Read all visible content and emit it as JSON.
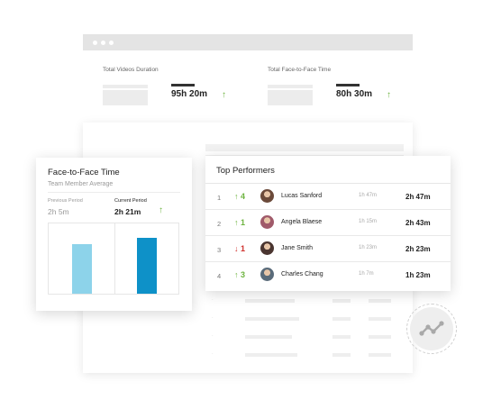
{
  "summary": {
    "total_videos_duration": {
      "label": "Total Videos Duration",
      "value": "95h 20m",
      "trend": "up"
    },
    "total_face_to_face_time": {
      "label": "Total Face-to-Face Time",
      "value": "80h 30m",
      "trend": "up"
    }
  },
  "face_to_face": {
    "title": "Face-to-Face Time",
    "subtitle": "Team Member Average",
    "previous_label": "Previous Period",
    "previous_value": "2h 5m",
    "current_label": "Current Period",
    "current_value": "2h  21m",
    "trend": "up",
    "colors": {
      "previous_bar": "#8dd3ea",
      "current_bar": "#0e91c8"
    }
  },
  "chart_data": {
    "type": "bar",
    "categories": [
      "Previous Period",
      "Current Period"
    ],
    "values": [
      125,
      141
    ],
    "ylim": [
      0,
      176
    ],
    "colors": [
      "#8dd3ea",
      "#0e91c8"
    ]
  },
  "top_performers": {
    "title": "Top Performers",
    "rows": [
      {
        "rank": "1",
        "delta": "4",
        "direction": "up",
        "name": "Lucas Sanford",
        "previous": "1h 47m",
        "current": "2h 47m",
        "avatar_color": "#6b4a3a"
      },
      {
        "rank": "2",
        "delta": "1",
        "direction": "up",
        "name": "Angela Blaese",
        "previous": "1h 15m",
        "current": "2h 43m",
        "avatar_color": "#a05a6a"
      },
      {
        "rank": "3",
        "delta": "1",
        "direction": "down",
        "name": "Jane Smith",
        "previous": "1h 23m",
        "current": "2h 23m",
        "avatar_color": "#4a3530"
      },
      {
        "rank": "4",
        "delta": "3",
        "direction": "up",
        "name": "Charles Chang",
        "previous": "1h 7m",
        "current": "1h  23m",
        "avatar_color": "#5a6b7a"
      }
    ]
  },
  "icons": {
    "up_arrow": "↑",
    "down_arrow": "↓",
    "trend": "trend-line-icon"
  },
  "colors": {
    "up": "#6db33f",
    "down": "#d0312d"
  }
}
